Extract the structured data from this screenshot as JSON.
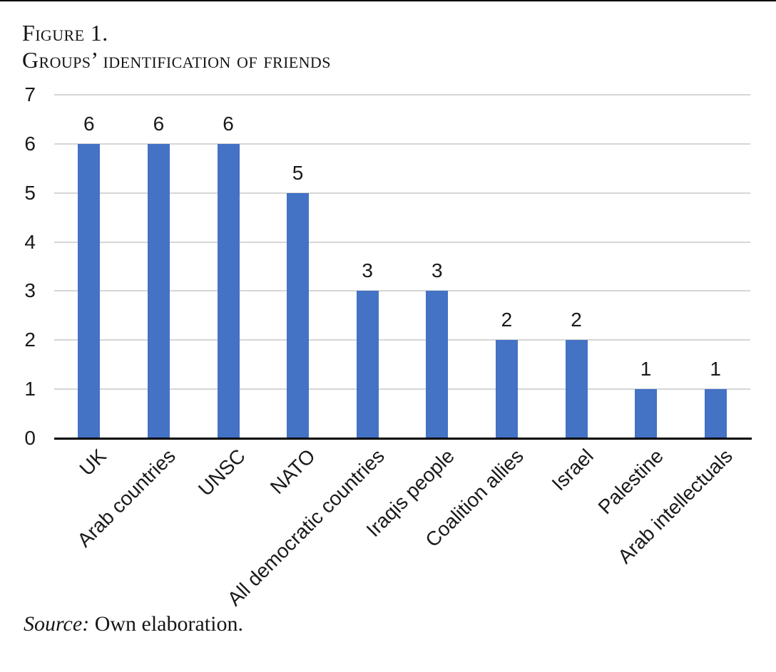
{
  "figure": {
    "label": "Figure 1.",
    "title": "Groups’ identification of friends",
    "source_prefix": "Source:",
    "source_text": " Own elaboration."
  },
  "chart_data": {
    "type": "bar",
    "title": "Groups’ identification of friends",
    "categories": [
      "UK",
      "Arab countries",
      "UNSC",
      "NATO",
      "All democratic countries",
      "Iraqis people",
      "Coalition allies",
      "Israel",
      "Palestine",
      "Arab intellectuals"
    ],
    "values": [
      6,
      6,
      6,
      5,
      3,
      3,
      2,
      2,
      1,
      1
    ],
    "xlabel": "",
    "ylabel": "",
    "ylim": [
      0,
      7
    ],
    "yticks": [
      0,
      1,
      2,
      3,
      4,
      5,
      6,
      7
    ],
    "grid": true,
    "legend": false,
    "data_labels": true,
    "bar_color": "#4472C4",
    "gridline_color": "#D6D6D6",
    "axis_color": "#000000",
    "label_color": "#1a1a1a"
  }
}
